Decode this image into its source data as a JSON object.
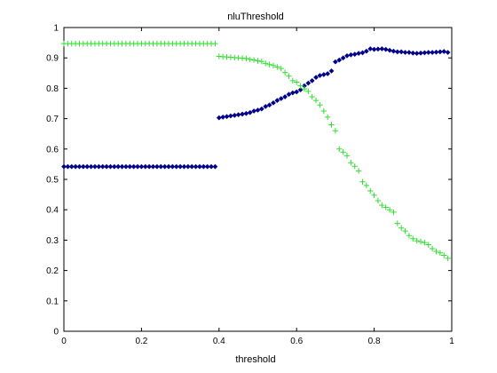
{
  "chart_data": {
    "type": "scatter",
    "title": "nluThreshold",
    "xlabel": "threshold",
    "ylabel": "",
    "xlim": [
      0,
      1
    ],
    "ylim": [
      0,
      1
    ],
    "xticks": [
      0,
      0.2,
      0.4,
      0.6,
      0.8,
      1
    ],
    "yticks": [
      0,
      0.1,
      0.2,
      0.3,
      0.4,
      0.5,
      0.6,
      0.7,
      0.8,
      0.9,
      1
    ],
    "xtick_labels": [
      "0",
      "0.2",
      "0.4",
      "0.6",
      "0.8",
      "1"
    ],
    "ytick_labels": [
      "0",
      "0.1",
      "0.2",
      "0.3",
      "0.4",
      "0.5",
      "0.6",
      "0.7",
      "0.8",
      "0.9",
      "1"
    ],
    "grid": false,
    "legend": "none",
    "series": [
      {
        "marker": "diamond",
        "color": "#00008b",
        "x": [
          0,
          0.01,
          0.02,
          0.03,
          0.04,
          0.05,
          0.06,
          0.07,
          0.08,
          0.09,
          0.1,
          0.11,
          0.12,
          0.13,
          0.14,
          0.15,
          0.16,
          0.17,
          0.18,
          0.19,
          0.2,
          0.21,
          0.22,
          0.23,
          0.24,
          0.25,
          0.26,
          0.27,
          0.28,
          0.29,
          0.3,
          0.31,
          0.32,
          0.33,
          0.34,
          0.35,
          0.36,
          0.37,
          0.38,
          0.39,
          0.4,
          0.41,
          0.42,
          0.43,
          0.44,
          0.45,
          0.46,
          0.47,
          0.48,
          0.49,
          0.5,
          0.51,
          0.52,
          0.53,
          0.54,
          0.55,
          0.56,
          0.57,
          0.58,
          0.59,
          0.6,
          0.61,
          0.62,
          0.63,
          0.64,
          0.65,
          0.66,
          0.67,
          0.68,
          0.69,
          0.7,
          0.71,
          0.72,
          0.73,
          0.74,
          0.75,
          0.76,
          0.77,
          0.78,
          0.79,
          0.8,
          0.81,
          0.82,
          0.83,
          0.84,
          0.85,
          0.86,
          0.87,
          0.88,
          0.89,
          0.9,
          0.91,
          0.92,
          0.93,
          0.94,
          0.95,
          0.96,
          0.97,
          0.98,
          0.99
        ],
        "y": [
          0.542,
          0.542,
          0.542,
          0.542,
          0.542,
          0.542,
          0.542,
          0.542,
          0.542,
          0.542,
          0.542,
          0.542,
          0.542,
          0.542,
          0.542,
          0.542,
          0.542,
          0.542,
          0.542,
          0.542,
          0.542,
          0.542,
          0.542,
          0.542,
          0.542,
          0.542,
          0.542,
          0.542,
          0.542,
          0.542,
          0.542,
          0.542,
          0.542,
          0.542,
          0.542,
          0.542,
          0.542,
          0.542,
          0.542,
          0.542,
          0.703,
          0.705,
          0.707,
          0.709,
          0.711,
          0.713,
          0.715,
          0.717,
          0.72,
          0.725,
          0.728,
          0.732,
          0.74,
          0.745,
          0.752,
          0.76,
          0.766,
          0.772,
          0.78,
          0.785,
          0.788,
          0.795,
          0.808,
          0.817,
          0.825,
          0.836,
          0.842,
          0.845,
          0.848,
          0.857,
          0.887,
          0.893,
          0.9,
          0.907,
          0.91,
          0.912,
          0.915,
          0.917,
          0.922,
          0.93,
          0.928,
          0.929,
          0.93,
          0.928,
          0.925,
          0.922,
          0.92,
          0.92,
          0.918,
          0.918,
          0.916,
          0.915,
          0.916,
          0.917,
          0.918,
          0.918,
          0.919,
          0.92,
          0.921,
          0.918
        ]
      },
      {
        "marker": "plus",
        "color": "#33dd33",
        "x": [
          0,
          0.01,
          0.02,
          0.03,
          0.04,
          0.05,
          0.06,
          0.07,
          0.08,
          0.09,
          0.1,
          0.11,
          0.12,
          0.13,
          0.14,
          0.15,
          0.16,
          0.17,
          0.18,
          0.19,
          0.2,
          0.21,
          0.22,
          0.23,
          0.24,
          0.25,
          0.26,
          0.27,
          0.28,
          0.29,
          0.3,
          0.31,
          0.32,
          0.33,
          0.34,
          0.35,
          0.36,
          0.37,
          0.38,
          0.39,
          0.4,
          0.41,
          0.42,
          0.43,
          0.44,
          0.45,
          0.46,
          0.47,
          0.48,
          0.49,
          0.5,
          0.51,
          0.52,
          0.53,
          0.54,
          0.55,
          0.56,
          0.57,
          0.58,
          0.59,
          0.6,
          0.61,
          0.62,
          0.63,
          0.64,
          0.65,
          0.66,
          0.67,
          0.68,
          0.69,
          0.7,
          0.71,
          0.72,
          0.73,
          0.74,
          0.75,
          0.76,
          0.77,
          0.78,
          0.79,
          0.8,
          0.81,
          0.82,
          0.83,
          0.84,
          0.85,
          0.86,
          0.87,
          0.88,
          0.89,
          0.9,
          0.91,
          0.92,
          0.93,
          0.94,
          0.95,
          0.96,
          0.97,
          0.98,
          0.99
        ],
        "y": [
          0.947,
          0.947,
          0.947,
          0.947,
          0.947,
          0.947,
          0.947,
          0.947,
          0.947,
          0.947,
          0.947,
          0.947,
          0.947,
          0.947,
          0.947,
          0.947,
          0.947,
          0.947,
          0.947,
          0.947,
          0.947,
          0.947,
          0.947,
          0.947,
          0.947,
          0.947,
          0.947,
          0.947,
          0.947,
          0.947,
          0.947,
          0.947,
          0.947,
          0.947,
          0.947,
          0.947,
          0.947,
          0.947,
          0.947,
          0.947,
          0.905,
          0.904,
          0.903,
          0.902,
          0.901,
          0.9,
          0.899,
          0.898,
          0.895,
          0.893,
          0.89,
          0.888,
          0.882,
          0.878,
          0.875,
          0.87,
          0.865,
          0.852,
          0.84,
          0.825,
          0.82,
          0.808,
          0.798,
          0.79,
          0.772,
          0.76,
          0.745,
          0.725,
          0.705,
          0.68,
          0.66,
          0.6,
          0.59,
          0.578,
          0.555,
          0.543,
          0.528,
          0.492,
          0.48,
          0.462,
          0.448,
          0.43,
          0.415,
          0.408,
          0.4,
          0.392,
          0.355,
          0.34,
          0.33,
          0.315,
          0.305,
          0.298,
          0.295,
          0.292,
          0.285,
          0.272,
          0.263,
          0.258,
          0.25,
          0.24
        ]
      }
    ]
  }
}
